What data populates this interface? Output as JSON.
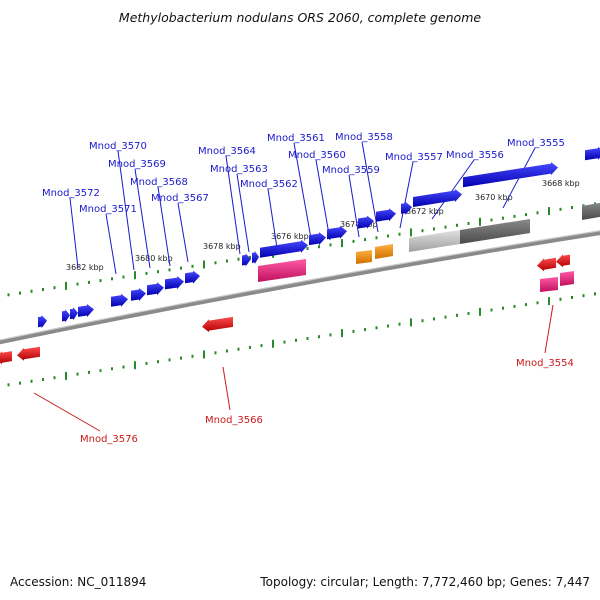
{
  "title": "Methylobacterium nodulans ORS 2060, complete genome",
  "footer": {
    "accession": "Accession: NC_011894",
    "topology": "Topology: circular; Length: 7,772,460 bp; Genes: 7,447"
  },
  "colors": {
    "forward_gene": "#1010e0",
    "reverse_gene": "#e01010",
    "pink_gene": "#e0207a",
    "orange_gene": "#f0900a",
    "gray_light": "#bdbdbd",
    "gray_dark": "#6a6a6a",
    "tick": "#2a8a2a",
    "backbone": "#7a7a7a",
    "label_forward": "#1a1acc",
    "label_reverse": "#cc1a1a"
  },
  "scale_labels": [
    "3682 kbp",
    "3680 kbp",
    "3678 kbp",
    "3676 kbp",
    "3674 kbp",
    "3672 kbp",
    "3670 kbp",
    "3668 kbp"
  ],
  "gene_labels_forward": [
    "Mnod_3570",
    "Mnod_3569",
    "Mnod_3568",
    "Mnod_3567",
    "Mnod_3572",
    "Mnod_3571",
    "Mnod_3564",
    "Mnod_3563",
    "Mnod_3562",
    "Mnod_3561",
    "Mnod_3560",
    "Mnod_3559",
    "Mnod_3558",
    "Mnod_3557",
    "Mnod_3556",
    "Mnod_3555"
  ],
  "gene_labels_reverse": [
    "Mnod_3554",
    "Mnod_3566",
    "Mnod_3576"
  ]
}
